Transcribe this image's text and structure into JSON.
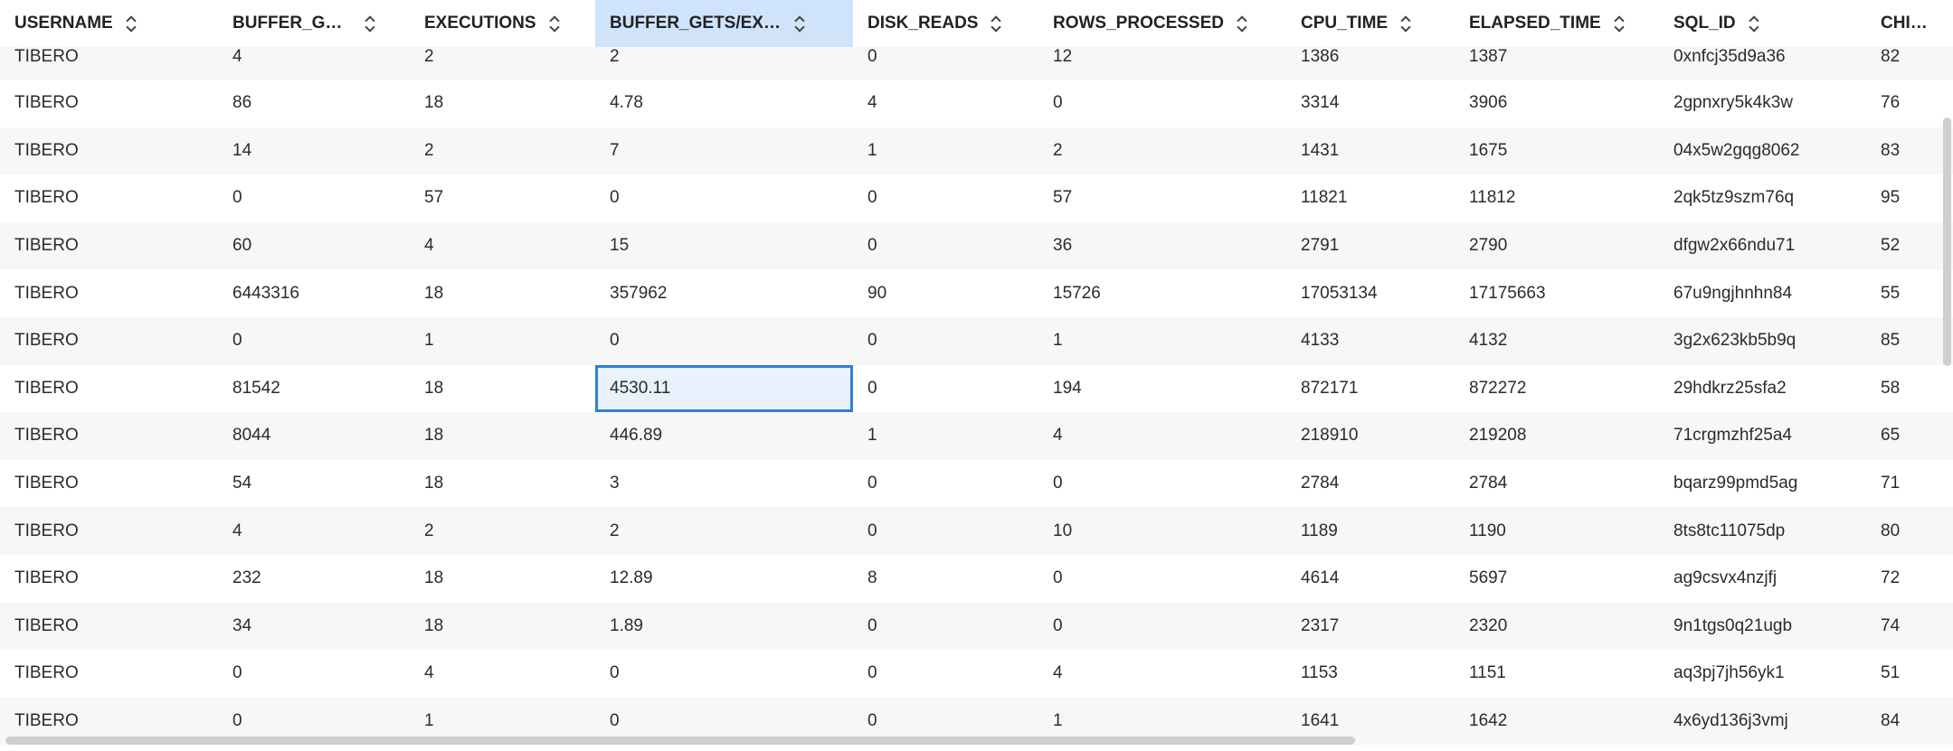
{
  "columns": [
    {
      "key": "username",
      "label": "USERNAME"
    },
    {
      "key": "buffer_gets",
      "label": "BUFFER_GE···"
    },
    {
      "key": "executions",
      "label": "EXECUTIONS"
    },
    {
      "key": "buffer_gets_exec",
      "label": "BUFFER_GETS/EXEC"
    },
    {
      "key": "disk_reads",
      "label": "DISK_READS"
    },
    {
      "key": "rows_processed",
      "label": "ROWS_PROCESSED"
    },
    {
      "key": "cpu_time",
      "label": "CPU_TIME"
    },
    {
      "key": "elapsed_time",
      "label": "ELAPSED_TIME"
    },
    {
      "key": "sql_id",
      "label": "SQL_ID"
    },
    {
      "key": "child",
      "label": "CHILD_"
    }
  ],
  "highlighted_column": "buffer_gets_exec",
  "rows": [
    [
      "TIBERO",
      "4",
      "2",
      "2",
      "0",
      "12",
      "1386",
      "1387",
      "0xnfcj35d9a36",
      "82"
    ],
    [
      "TIBERO",
      "86",
      "18",
      "4.78",
      "4",
      "0",
      "3314",
      "3906",
      "2gpnxry5k4k3w",
      "76"
    ],
    [
      "TIBERO",
      "14",
      "2",
      "7",
      "1",
      "2",
      "1431",
      "1675",
      "04x5w2gqg8062",
      "83"
    ],
    [
      "TIBERO",
      "0",
      "57",
      "0",
      "0",
      "57",
      "11821",
      "11812",
      "2qk5tz9szm76q",
      "95"
    ],
    [
      "TIBERO",
      "60",
      "4",
      "15",
      "0",
      "36",
      "2791",
      "2790",
      "dfgw2x66ndu71",
      "52"
    ],
    [
      "TIBERO",
      "6443316",
      "18",
      "357962",
      "90",
      "15726",
      "17053134",
      "17175663",
      "67u9ngjhnhn84",
      "55"
    ],
    [
      "TIBERO",
      "0",
      "1",
      "0",
      "0",
      "1",
      "4133",
      "4132",
      "3g2x623kb5b9q",
      "85"
    ],
    [
      "TIBERO",
      "81542",
      "18",
      "4530.11",
      "0",
      "194",
      "872171",
      "872272",
      "29hdkrz25sfa2",
      "58"
    ],
    [
      "TIBERO",
      "8044",
      "18",
      "446.89",
      "1",
      "4",
      "218910",
      "219208",
      "71crgmzhf25a4",
      "65"
    ],
    [
      "TIBERO",
      "54",
      "18",
      "3",
      "0",
      "0",
      "2784",
      "2784",
      "bqarz99pmd5ag",
      "71"
    ],
    [
      "TIBERO",
      "4",
      "2",
      "2",
      "0",
      "10",
      "1189",
      "1190",
      "8ts8tc11075dp",
      "80"
    ],
    [
      "TIBERO",
      "232",
      "18",
      "12.89",
      "8",
      "0",
      "4614",
      "5697",
      "ag9csvx4nzjfj",
      "72"
    ],
    [
      "TIBERO",
      "34",
      "18",
      "1.89",
      "0",
      "0",
      "2317",
      "2320",
      "9n1tgs0q21ugb",
      "74"
    ],
    [
      "TIBERO",
      "0",
      "4",
      "0",
      "0",
      "4",
      "1153",
      "1151",
      "aq3pj7jh56yk1",
      "51"
    ],
    [
      "TIBERO",
      "0",
      "1",
      "0",
      "0",
      "1",
      "1641",
      "1642",
      "4x6yd136j3vmj",
      "84"
    ]
  ],
  "selected_cell": {
    "row": 7,
    "column": "buffer_gets_exec"
  }
}
